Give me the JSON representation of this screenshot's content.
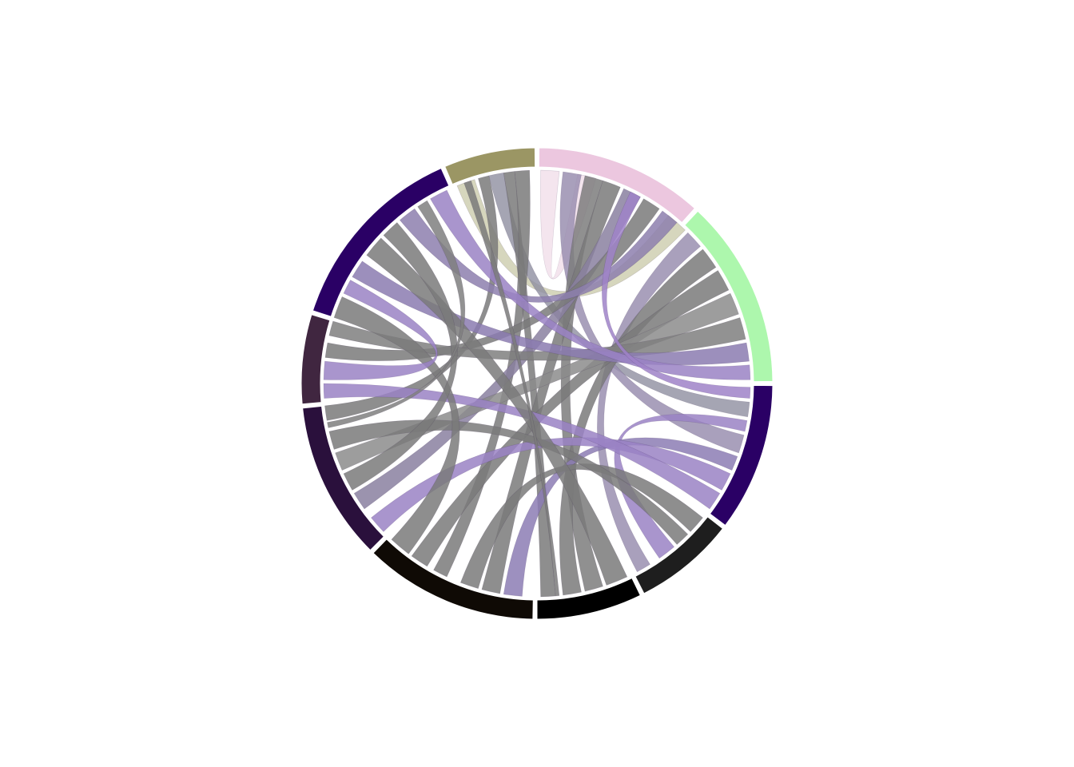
{
  "chart_data": {
    "type": "chord",
    "sectors": [
      {
        "id": "s1",
        "color": "#9b9664",
        "start_deg": 337.0,
        "end_deg": 359.5
      },
      {
        "id": "s2",
        "color": "#ecc7df",
        "start_deg": 0.5,
        "end_deg": 42.0
      },
      {
        "id": "s3",
        "color": "#adf7ad",
        "start_deg": 43.0,
        "end_deg": 89.5
      },
      {
        "id": "s4",
        "color": "#2a0065",
        "start_deg": 90.5,
        "end_deg": 127.0
      },
      {
        "id": "s5",
        "color": "#1e1e1e",
        "start_deg": 128.0,
        "end_deg": 153.0
      },
      {
        "id": "s6",
        "color": "#000000",
        "start_deg": 154.0,
        "end_deg": 180.0
      },
      {
        "id": "s7",
        "color": "#0f0a05",
        "start_deg": 181.0,
        "end_deg": 224.0
      },
      {
        "id": "s8",
        "color": "#2a103c",
        "start_deg": 225.0,
        "end_deg": 264.0
      },
      {
        "id": "s9",
        "color": "#402640",
        "start_deg": 265.0,
        "end_deg": 287.0
      },
      {
        "id": "s10",
        "color": "#2a0065",
        "start_deg": 288.0,
        "end_deg": 336.0
      }
    ],
    "links": [
      {
        "a1": 338,
        "a2": 343,
        "b1": 38,
        "b2": 44,
        "color": "#cfcfb1",
        "opacity": 0.85
      },
      {
        "a1": 344,
        "a2": 347,
        "b1": 260,
        "b2": 264,
        "color": "#7a7a7a",
        "opacity": 0.85
      },
      {
        "a1": 347,
        "a2": 351,
        "b1": 95,
        "b2": 99,
        "color": "#8f8fa0",
        "opacity": 0.8
      },
      {
        "a1": 351,
        "a2": 354,
        "b1": 175,
        "b2": 179,
        "color": "#7a7a7a",
        "opacity": 0.85
      },
      {
        "a1": 354,
        "a2": 358,
        "b1": 205,
        "b2": 209,
        "color": "#7a7a7a",
        "opacity": 0.85
      },
      {
        "a1": 1,
        "a2": 6,
        "b1": 11,
        "b2": 16,
        "color": "#f3e2ec",
        "opacity": 0.9
      },
      {
        "a1": 7,
        "a2": 12,
        "b1": 104,
        "b2": 109,
        "color": "#9a8fb0",
        "opacity": 0.85
      },
      {
        "a1": 13,
        "a2": 18,
        "b1": 162,
        "b2": 167,
        "color": "#7d7d7d",
        "opacity": 0.85
      },
      {
        "a1": 18,
        "a2": 23,
        "b1": 190,
        "b2": 195,
        "color": "#7a7a7a",
        "opacity": 0.85
      },
      {
        "a1": 24,
        "a2": 29,
        "b1": 234,
        "b2": 239,
        "color": "#8a80a0",
        "opacity": 0.85
      },
      {
        "a1": 30,
        "a2": 35,
        "b1": 277,
        "b2": 281,
        "color": "#7a7a7a",
        "opacity": 0.85
      },
      {
        "a1": 36,
        "a2": 41,
        "b1": 320,
        "b2": 325,
        "color": "#8d7fae",
        "opacity": 0.85
      },
      {
        "a1": 45,
        "a2": 50,
        "b1": 148,
        "b2": 152,
        "color": "#9a8fb0",
        "opacity": 0.85
      },
      {
        "a1": 51,
        "a2": 57,
        "b1": 168,
        "b2": 173,
        "color": "#7a7a7a",
        "opacity": 0.85
      },
      {
        "a1": 58,
        "a2": 64,
        "b1": 211,
        "b2": 216,
        "color": "#7a7a7a",
        "opacity": 0.85
      },
      {
        "a1": 65,
        "a2": 71,
        "b1": 246,
        "b2": 251,
        "color": "#8c8c8c",
        "opacity": 0.85
      },
      {
        "a1": 72,
        "a2": 78,
        "b1": 283,
        "b2": 287,
        "color": "#7f7f7f",
        "opacity": 0.85
      },
      {
        "a1": 79,
        "a2": 84,
        "b1": 300,
        "b2": 305,
        "color": "#8b7bb0",
        "opacity": 0.85
      },
      {
        "a1": 85,
        "a2": 89,
        "b1": 330,
        "b2": 335,
        "color": "#9a83c4",
        "opacity": 0.85
      },
      {
        "a1": 91,
        "a2": 94,
        "b1": 26,
        "b2": 29,
        "color": "#9f82c8",
        "opacity": 0.85
      },
      {
        "a1": 100,
        "a2": 103,
        "b1": 140,
        "b2": 145,
        "color": "#9a83c4",
        "opacity": 0.85
      },
      {
        "a1": 110,
        "a2": 114,
        "b1": 184,
        "b2": 189,
        "color": "#8c7cb4",
        "opacity": 0.85
      },
      {
        "a1": 115,
        "a2": 120,
        "b1": 226,
        "b2": 231,
        "color": "#9a83c4",
        "opacity": 0.85
      },
      {
        "a1": 121,
        "a2": 126,
        "b1": 266,
        "b2": 270,
        "color": "#9a83c4",
        "opacity": 0.85
      },
      {
        "a1": 129,
        "a2": 134,
        "b1": 196,
        "b2": 201,
        "color": "#7a7a7a",
        "opacity": 0.85
      },
      {
        "a1": 135,
        "a2": 139,
        "b1": 252,
        "b2": 257,
        "color": "#7a7a7a",
        "opacity": 0.85
      },
      {
        "a1": 155,
        "a2": 161,
        "b1": 307,
        "b2": 313,
        "color": "#7a7a7a",
        "opacity": 0.85
      },
      {
        "a1": 174,
        "a2": 175,
        "b1": 340,
        "b2": 342,
        "color": "#7a7a7a",
        "opacity": 0.85
      },
      {
        "a1": 217,
        "a2": 223,
        "b1": 288,
        "b2": 294,
        "color": "#7a7a7a",
        "opacity": 0.85
      },
      {
        "a1": 240,
        "a2": 245,
        "b1": 314,
        "b2": 319,
        "color": "#7a7a7a",
        "opacity": 0.85
      },
      {
        "a1": 271,
        "a2": 276,
        "b1": 295,
        "b2": 299,
        "color": "#9a83c4",
        "opacity": 0.85
      },
      {
        "a1": 326,
        "a2": 329,
        "b1": 258,
        "b2": 259.5,
        "color": "#7f7f7f",
        "opacity": 0.85
      }
    ]
  }
}
